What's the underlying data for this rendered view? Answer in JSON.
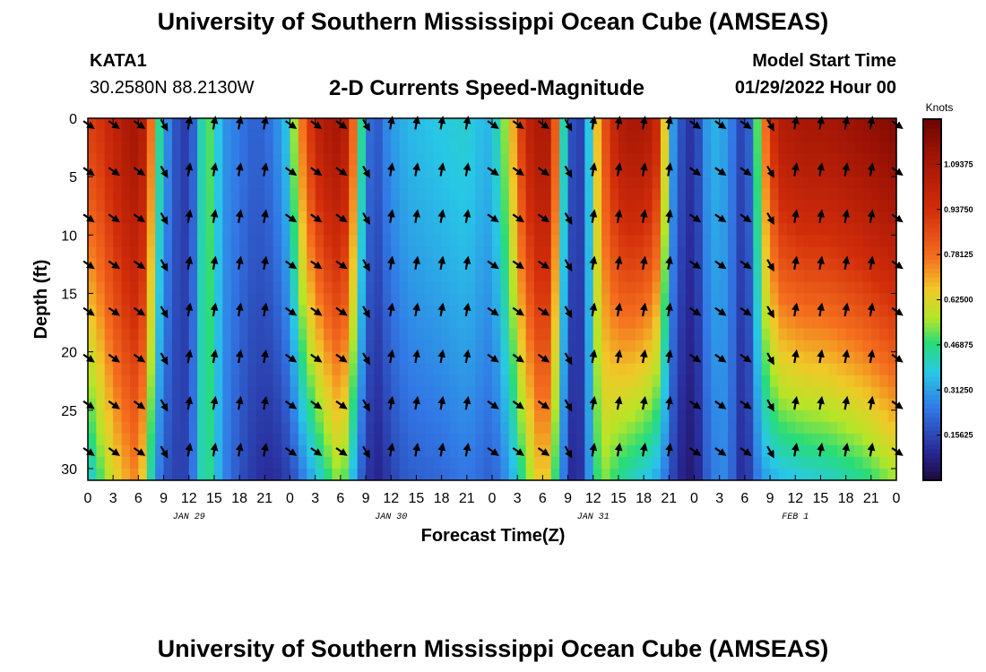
{
  "header": {
    "title": "University of Southern Mississippi Ocean Cube (AMSEAS)",
    "station": "KATA1",
    "coords": "30.2580N  88.2130W",
    "model_start_label": "Model Start Time",
    "model_start_value": "01/29/2022 Hour 00"
  },
  "footer": {
    "title": "University of Southern Mississippi Ocean Cube (AMSEAS)"
  },
  "chart_data": {
    "type": "heatmap",
    "title": "2-D Currents Speed-Magnitude",
    "xlabel": "Forecast Time(Z)",
    "ylabel": "Depth (ft)",
    "xlim": [
      0,
      96
    ],
    "ylim": [
      0,
      31
    ],
    "x_tick_labels": [
      "0",
      "3",
      "6",
      "9",
      "12",
      "15",
      "18",
      "21",
      "0",
      "3",
      "6",
      "9",
      "12",
      "15",
      "18",
      "21",
      "0",
      "3",
      "6",
      "9",
      "12",
      "15",
      "18",
      "21",
      "0",
      "3",
      "6",
      "9",
      "12",
      "15",
      "18",
      "21",
      "0"
    ],
    "y_ticks": [
      0,
      5,
      10,
      15,
      20,
      25,
      30
    ],
    "date_labels": [
      {
        "hour": 12,
        "text": "JAN 29"
      },
      {
        "hour": 36,
        "text": "JAN 30"
      },
      {
        "hour": 60,
        "text": "JAN 31"
      },
      {
        "hour": 84,
        "text": "FEB 1"
      }
    ],
    "colorbar": {
      "unit": "Knots",
      "min": 0,
      "max": 1.25,
      "ticks": [
        "1.09375",
        "0.93750",
        "0.78125",
        "0.62500",
        "0.46875",
        "0.31250",
        "0.15625"
      ],
      "tick_values": [
        1.09375,
        0.9375,
        0.78125,
        0.625,
        0.46875,
        0.3125,
        0.15625
      ]
    },
    "speed_profiles_knots": [
      {
        "hour": 0,
        "surface": 0.9,
        "bottom": 0.35
      },
      {
        "hour": 1,
        "surface": 0.9,
        "bottom": 0.45
      },
      {
        "hour": 3,
        "surface": 1.0,
        "bottom": 0.62
      },
      {
        "hour": 5,
        "surface": 1.1,
        "bottom": 0.72
      },
      {
        "hour": 6,
        "surface": 1.1,
        "bottom": 0.75
      },
      {
        "hour": 7,
        "surface": 1.0,
        "bottom": 0.55
      },
      {
        "hour": 8,
        "surface": 0.55,
        "bottom": 0.3
      },
      {
        "hour": 9,
        "surface": 0.35,
        "bottom": 0.2
      },
      {
        "hour": 10,
        "surface": 0.2,
        "bottom": 0.15
      },
      {
        "hour": 12,
        "surface": 0.12,
        "bottom": 0.15
      },
      {
        "hour": 13,
        "surface": 0.3,
        "bottom": 0.35
      },
      {
        "hour": 14,
        "surface": 0.55,
        "bottom": 0.5
      },
      {
        "hour": 15,
        "surface": 0.45,
        "bottom": 0.4
      },
      {
        "hour": 16,
        "surface": 0.3,
        "bottom": 0.28
      },
      {
        "hour": 18,
        "surface": 0.25,
        "bottom": 0.18
      },
      {
        "hour": 20,
        "surface": 0.2,
        "bottom": 0.12
      },
      {
        "hour": 22,
        "surface": 0.25,
        "bottom": 0.1
      },
      {
        "hour": 24,
        "surface": 0.4,
        "bottom": 0.15
      },
      {
        "hour": 25,
        "surface": 0.7,
        "bottom": 0.22
      },
      {
        "hour": 27,
        "surface": 1.0,
        "bottom": 0.35
      },
      {
        "hour": 29,
        "surface": 1.1,
        "bottom": 0.5
      },
      {
        "hour": 30,
        "surface": 1.1,
        "bottom": 0.55
      },
      {
        "hour": 31,
        "surface": 1.0,
        "bottom": 0.45
      },
      {
        "hour": 32,
        "surface": 0.6,
        "bottom": 0.25
      },
      {
        "hour": 33,
        "surface": 0.3,
        "bottom": 0.15
      },
      {
        "hour": 34,
        "surface": 0.15,
        "bottom": 0.08
      },
      {
        "hour": 35,
        "surface": 0.25,
        "bottom": 0.1
      },
      {
        "hour": 36,
        "surface": 0.3,
        "bottom": 0.15
      },
      {
        "hour": 38,
        "surface": 0.35,
        "bottom": 0.2
      },
      {
        "hour": 42,
        "surface": 0.38,
        "bottom": 0.22
      },
      {
        "hour": 45,
        "surface": 0.4,
        "bottom": 0.25
      },
      {
        "hour": 47,
        "surface": 0.35,
        "bottom": 0.22
      },
      {
        "hour": 48,
        "surface": 0.35,
        "bottom": 0.2
      },
      {
        "hour": 50,
        "surface": 0.6,
        "bottom": 0.3
      },
      {
        "hour": 52,
        "surface": 1.0,
        "bottom": 0.5
      },
      {
        "hour": 54,
        "surface": 1.1,
        "bottom": 0.7
      },
      {
        "hour": 55,
        "surface": 1.05,
        "bottom": 0.6
      },
      {
        "hour": 56,
        "surface": 0.6,
        "bottom": 0.35
      },
      {
        "hour": 57,
        "surface": 0.25,
        "bottom": 0.15
      },
      {
        "hour": 58,
        "surface": 0.1,
        "bottom": 0.06
      },
      {
        "hour": 59,
        "surface": 0.2,
        "bottom": 0.18
      },
      {
        "hour": 60,
        "surface": 0.55,
        "bottom": 0.4
      },
      {
        "hour": 61,
        "surface": 0.8,
        "bottom": 0.55
      },
      {
        "hour": 63,
        "surface": 1.05,
        "bottom": 0.45
      },
      {
        "hour": 65,
        "surface": 1.1,
        "bottom": 0.4
      },
      {
        "hour": 67,
        "surface": 1.05,
        "bottom": 0.35
      },
      {
        "hour": 68,
        "surface": 0.9,
        "bottom": 0.3
      },
      {
        "hour": 69,
        "surface": 0.4,
        "bottom": 0.2
      },
      {
        "hour": 70,
        "surface": 0.2,
        "bottom": 0.1
      },
      {
        "hour": 72,
        "surface": 0.1,
        "bottom": 0.05
      },
      {
        "hour": 73,
        "surface": 0.25,
        "bottom": 0.15
      },
      {
        "hour": 74,
        "surface": 0.35,
        "bottom": 0.25
      },
      {
        "hour": 76,
        "surface": 0.3,
        "bottom": 0.28
      },
      {
        "hour": 77,
        "surface": 0.2,
        "bottom": 0.15
      },
      {
        "hour": 78,
        "surface": 0.12,
        "bottom": 0.08
      },
      {
        "hour": 79,
        "surface": 0.3,
        "bottom": 0.2
      },
      {
        "hour": 80,
        "surface": 0.7,
        "bottom": 0.3
      },
      {
        "hour": 82,
        "surface": 1.05,
        "bottom": 0.35
      },
      {
        "hour": 85,
        "surface": 1.1,
        "bottom": 0.38
      },
      {
        "hour": 88,
        "surface": 1.1,
        "bottom": 0.4
      },
      {
        "hour": 92,
        "surface": 1.15,
        "bottom": 0.45
      },
      {
        "hour": 96,
        "surface": 1.2,
        "bottom": 0.55
      }
    ]
  }
}
